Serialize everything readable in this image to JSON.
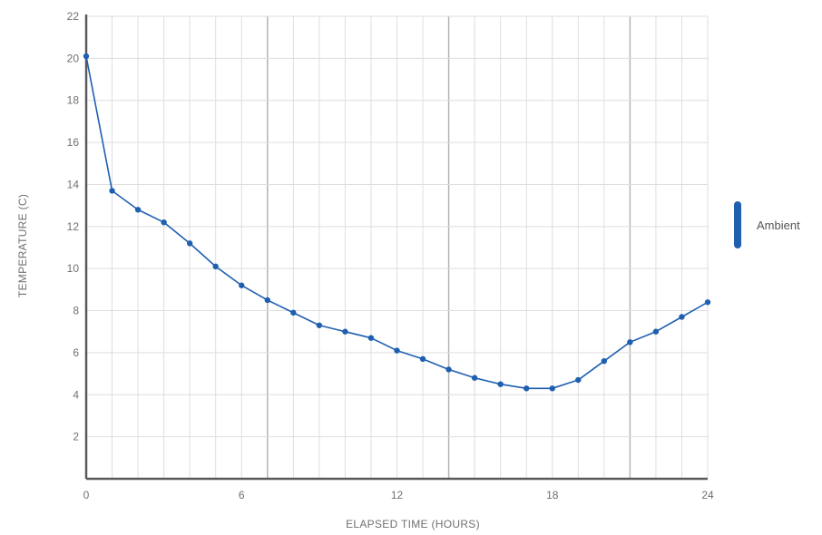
{
  "chart_data": {
    "type": "line",
    "xlabel": "ELAPSED TIME (HOURS)",
    "ylabel": "TEMPERATURE (C)",
    "xlim": [
      0,
      24
    ],
    "ylim": [
      0,
      22
    ],
    "x_ticks": [
      0,
      6,
      12,
      18,
      24
    ],
    "y_ticks": [
      2,
      4,
      6,
      8,
      10,
      12,
      14,
      16,
      18,
      20,
      22
    ],
    "grid": true,
    "legend_position": "right",
    "series": [
      {
        "name": "Ambient",
        "color": "#1f5fb0",
        "x": [
          0,
          1,
          2,
          3,
          4,
          5,
          6,
          7,
          8,
          9,
          10,
          11,
          12,
          13,
          14,
          15,
          16,
          17,
          18,
          19,
          20,
          21,
          22,
          23,
          24
        ],
        "y": [
          20.1,
          13.7,
          12.8,
          12.2,
          11.2,
          10.1,
          9.2,
          8.5,
          7.9,
          7.3,
          7.0,
          6.7,
          6.1,
          5.7,
          5.2,
          4.8,
          4.5,
          4.3,
          4.3,
          4.7,
          5.6,
          6.5,
          7.0,
          7.7,
          8.4
        ]
      }
    ]
  }
}
